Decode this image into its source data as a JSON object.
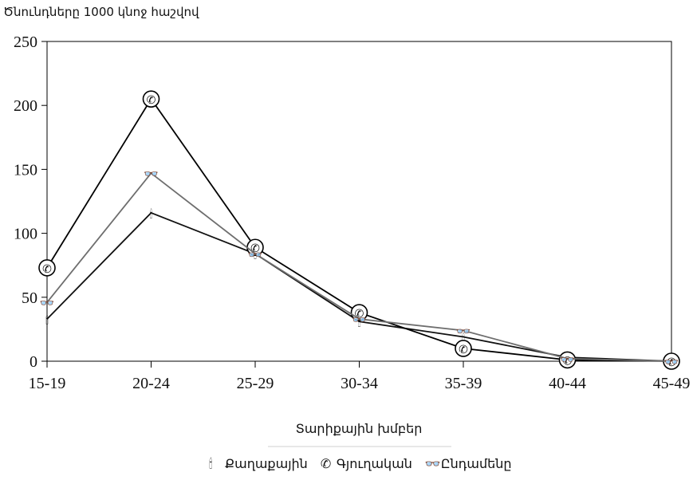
{
  "chart_data": {
    "type": "line",
    "ylabel": "Ծնունդները 1000 կնոջ հաշվով",
    "xlabel": "Տարիքային խմբեր",
    "categories": [
      "15-19",
      "20-24",
      "25-29",
      "30-34",
      "35-39",
      "40-44",
      "45-49"
    ],
    "ylim": [
      0,
      250
    ],
    "yticks": [
      0,
      50,
      100,
      150,
      200,
      250
    ],
    "grid": false,
    "legend_position": "bottom",
    "series": [
      {
        "name": "Քաղաքային",
        "values": [
          33,
          116,
          84,
          31,
          19,
          3,
          0
        ],
        "color": "#111111",
        "marker_icon": "candle-icon",
        "marker_glyph": "🕯"
      },
      {
        "name": "Գյուղական",
        "values": [
          73,
          205,
          89,
          38,
          10,
          1,
          0
        ],
        "color": "#000000",
        "marker_icon": "phone-icon",
        "marker_glyph": "✆"
      },
      {
        "name": "Ընդամենը",
        "values": [
          46,
          147,
          84,
          33,
          24,
          2,
          0
        ],
        "color": "#6e6e6e",
        "marker_icon": "glasses-icon",
        "marker_glyph": "👓"
      }
    ]
  }
}
